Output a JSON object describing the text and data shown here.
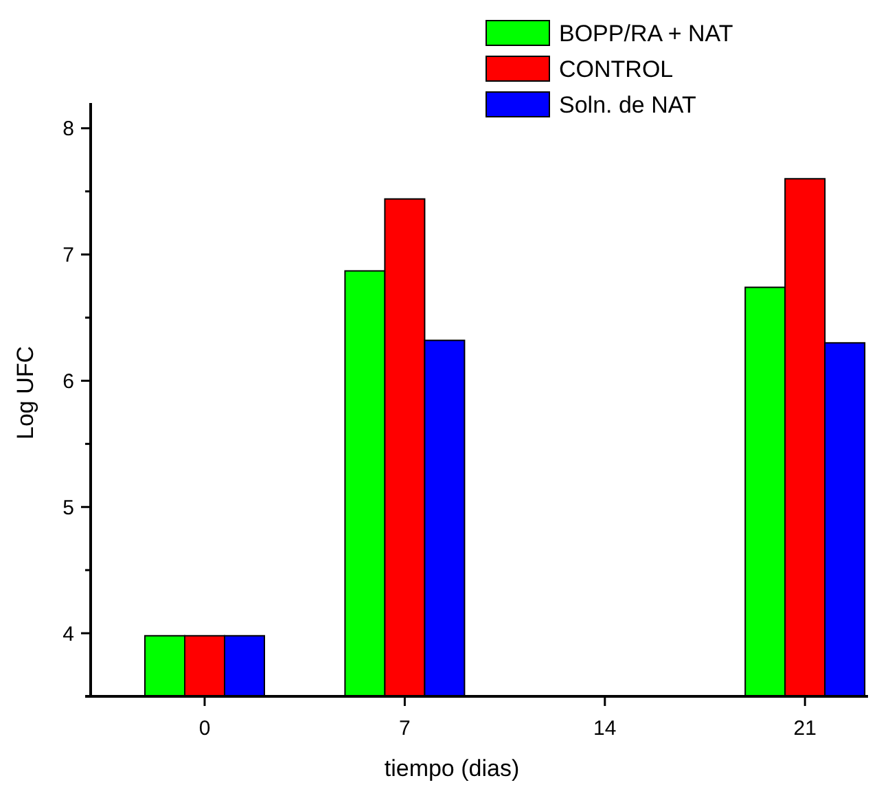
{
  "chart_data": {
    "type": "bar",
    "xlabel": "tiempo (dias)",
    "ylabel": "Log UFC",
    "categories": [
      "0",
      "7",
      "14",
      "21"
    ],
    "series": [
      {
        "name": "BOPP/RA + NAT",
        "color": "#00ff00",
        "values": [
          3.98,
          6.87,
          null,
          6.74
        ]
      },
      {
        "name": "CONTROL",
        "color": "#ff0000",
        "values": [
          3.98,
          7.44,
          null,
          7.6
        ]
      },
      {
        "name": "Soln. de NAT",
        "color": "#0000ff",
        "values": [
          3.98,
          6.32,
          null,
          6.3
        ]
      }
    ],
    "ylim": [
      3.5,
      8.2
    ],
    "yticks": [
      4,
      {
        "value": 4.5,
        "label": null
      },
      5,
      {
        "value": 5.5,
        "label": null
      },
      6,
      {
        "value": 6.5,
        "label": null
      },
      7,
      {
        "value": 7.5,
        "label": null
      },
      8
    ],
    "grid": false,
    "legend": "top right"
  }
}
